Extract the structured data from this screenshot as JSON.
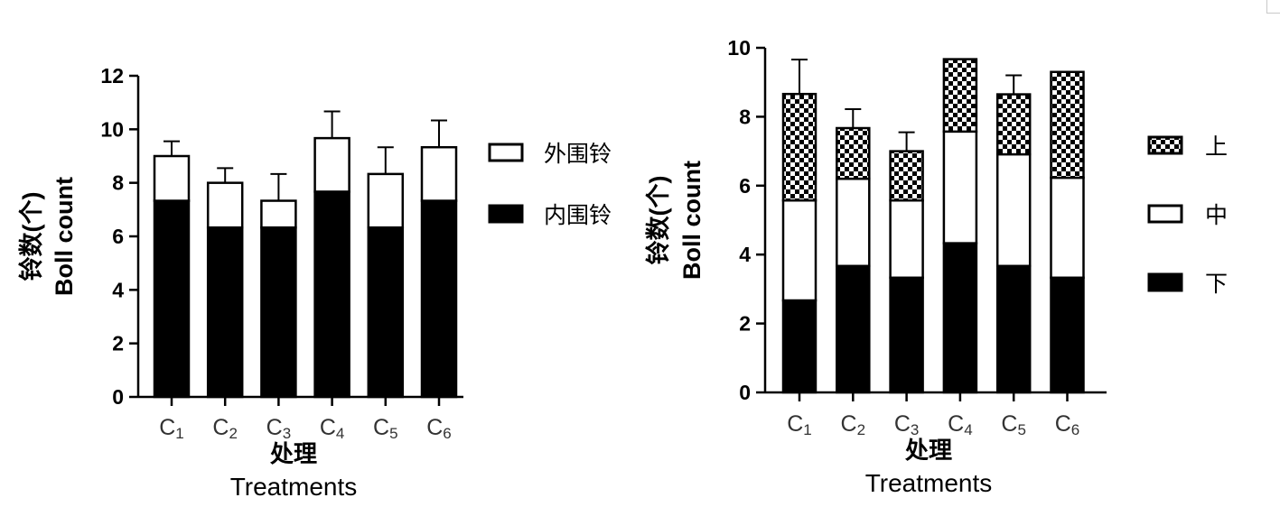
{
  "chart_data": [
    {
      "type": "bar",
      "stacked": true,
      "categories": [
        "C1",
        "C2",
        "C3",
        "C4",
        "C5",
        "C6"
      ],
      "series": [
        {
          "name": "内围铃",
          "fill": "#000000",
          "values": [
            7.33,
            6.33,
            6.33,
            7.67,
            6.33,
            7.33
          ],
          "error": [
            0.55,
            0.55,
            0.55,
            0.55,
            0.55,
            0.55
          ]
        },
        {
          "name": "外围铃",
          "fill": "#ffffff",
          "values": [
            1.67,
            1.67,
            1.0,
            2.0,
            2.0,
            2.0
          ],
          "error": [
            0.55,
            0.55,
            1.0,
            1.0,
            1.0,
            1.0
          ]
        }
      ],
      "ylim": [
        0,
        12
      ],
      "yticks": [
        0,
        2,
        4,
        6,
        8,
        10,
        12
      ],
      "ylabel_cn": "铃数(个)",
      "ylabel_en": "Boll count",
      "xlabel_cn": "处理",
      "xlabel_en": "Treatments",
      "legend_position": "right"
    },
    {
      "type": "bar",
      "stacked": true,
      "categories": [
        "C1",
        "C2",
        "C3",
        "C4",
        "C5",
        "C6"
      ],
      "series": [
        {
          "name": "下",
          "fill": "#000000",
          "values": [
            2.67,
            3.67,
            3.33,
            4.33,
            3.67,
            3.33
          ],
          "error": [
            0.55,
            0.55,
            0.55,
            0.55,
            0.55,
            0.55
          ]
        },
        {
          "name": "中",
          "fill": "#ffffff",
          "values": [
            2.9,
            2.53,
            2.24,
            3.24,
            3.24,
            2.9
          ],
          "error": [
            0,
            0,
            0,
            0,
            0,
            0
          ]
        },
        {
          "name": "上",
          "fill": "checker",
          "values": [
            3.09,
            1.47,
            1.43,
            2.1,
            1.74,
            3.07
          ],
          "error": [
            1.0,
            0.55,
            0.55,
            0,
            0.55,
            0
          ]
        }
      ],
      "ylim": [
        0,
        10
      ],
      "yticks": [
        0,
        2,
        4,
        6,
        8,
        10
      ],
      "ylabel_cn": "铃数(个)",
      "ylabel_en": "Boll count",
      "xlabel_cn": "处理",
      "xlabel_en": "Treatments",
      "legend_position": "right"
    }
  ]
}
